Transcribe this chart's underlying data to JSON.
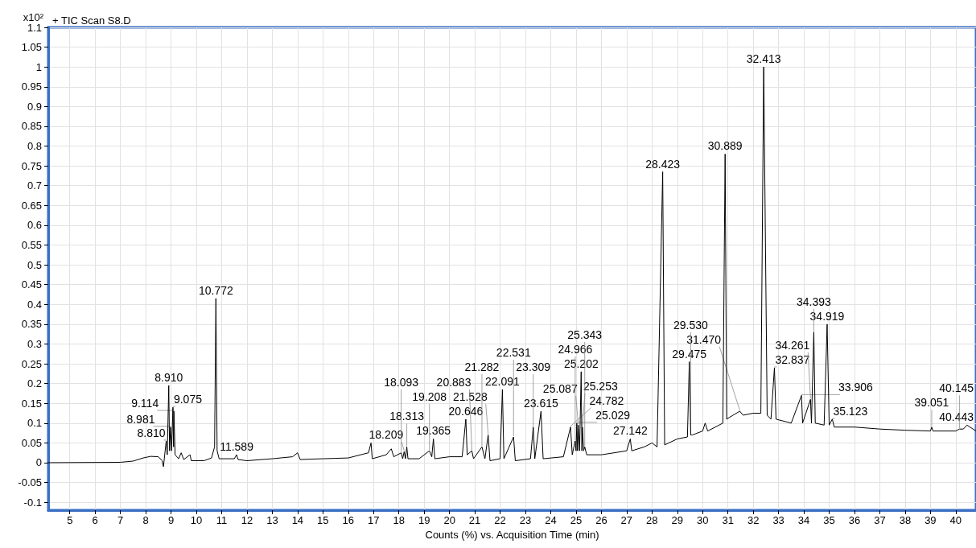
{
  "chart_data": {
    "type": "line",
    "title": "+ TIC Scan S8.D",
    "xlabel": "Counts (%) vs. Acquisition Time (min)",
    "ylabel": "x10²",
    "color": "#000000",
    "marker": "none",
    "grid": true,
    "xlim": [
      4.15,
      40.8
    ],
    "xticks": [
      5,
      6,
      7,
      8,
      9,
      10,
      11,
      12,
      13,
      14,
      15,
      16,
      17,
      18,
      19,
      20,
      21,
      22,
      23,
      24,
      25,
      26,
      27,
      28,
      29,
      30,
      31,
      32,
      33,
      34,
      35,
      36,
      37,
      38,
      39,
      40
    ],
    "ylim": [
      -0.12,
      1.1
    ],
    "yticks": [
      -0.1,
      -0.05,
      0,
      0.05,
      0.1,
      0.15,
      0.2,
      0.25,
      0.3,
      0.35,
      0.4,
      0.45,
      0.5,
      0.55,
      0.6,
      0.65,
      0.7,
      0.75,
      0.8,
      0.85,
      0.9,
      0.95,
      1,
      1.05,
      1.1
    ],
    "x": [
      4.15,
      7.0,
      7.5,
      7.9,
      8.2,
      8.5,
      8.65,
      8.7,
      8.75,
      8.81,
      8.85,
      8.91,
      8.94,
      8.981,
      9.02,
      9.075,
      9.1,
      9.114,
      9.16,
      9.3,
      9.4,
      9.5,
      9.75,
      9.8,
      10.3,
      10.6,
      10.72,
      10.772,
      10.82,
      10.9,
      11.5,
      11.589,
      11.65,
      12.0,
      13.0,
      13.8,
      14.0,
      14.1,
      15.0,
      16.0,
      16.8,
      16.9,
      16.95,
      17.5,
      17.7,
      17.8,
      18.093,
      18.15,
      18.209,
      18.26,
      18.313,
      18.36,
      18.8,
      19.208,
      19.3,
      19.365,
      19.42,
      20.0,
      20.5,
      20.646,
      20.7,
      20.883,
      20.95,
      21.282,
      21.4,
      21.528,
      21.6,
      22.0,
      22.091,
      22.15,
      22.531,
      22.6,
      23.2,
      23.309,
      23.37,
      23.615,
      23.7,
      24.5,
      24.782,
      24.85,
      24.966,
      25.0,
      25.029,
      25.06,
      25.087,
      25.14,
      25.202,
      25.23,
      25.253,
      25.3,
      25.343,
      25.42,
      26.0,
      26.5,
      27.0,
      27.142,
      27.2,
      27.7,
      28.0,
      28.2,
      28.423,
      28.5,
      29.0,
      29.4,
      29.475,
      29.53,
      29.6,
      30.0,
      30.1,
      30.2,
      30.8,
      30.889,
      30.95,
      31.2,
      31.47,
      31.6,
      32.0,
      32.3,
      32.413,
      32.55,
      32.7,
      32.837,
      32.9,
      33.5,
      33.906,
      33.95,
      34.261,
      34.3,
      34.393,
      34.45,
      34.8,
      34.919,
      35.0,
      35.123,
      35.2,
      36.0,
      37.0,
      38.0,
      39.0,
      39.051,
      39.1,
      40.0,
      40.145,
      40.3,
      40.443,
      40.8
    ],
    "values": [
      0,
      0.001,
      0.004,
      0.012,
      0.016,
      0.015,
      0.005,
      -0.01,
      0.02,
      0.055,
      0.02,
      0.195,
      0.03,
      0.09,
      0.03,
      0.14,
      0.04,
      0.13,
      0.02,
      0.01,
      0.025,
      0.008,
      0.02,
      0.005,
      0.005,
      0.012,
      0.04,
      0.415,
      0.03,
      0.01,
      0.01,
      0.02,
      0.008,
      0.005,
      0.01,
      0.015,
      0.025,
      0.008,
      0.01,
      0.012,
      0.025,
      0.05,
      0.01,
      0.02,
      0.035,
      0.015,
      0.025,
      0.01,
      0.028,
      0.01,
      0.04,
      0.01,
      0.01,
      0.03,
      0.015,
      0.06,
      0.01,
      0.015,
      0.015,
      0.11,
      0.02,
      0.03,
      0.01,
      0.04,
      0.01,
      0.07,
      0.005,
      0.01,
      0.185,
      0.01,
      0.065,
      0.005,
      0.01,
      0.09,
      0.01,
      0.13,
      0.01,
      0.015,
      0.09,
      0.02,
      0.055,
      0.03,
      0.1,
      0.03,
      0.095,
      0.03,
      0.23,
      0.03,
      0.09,
      0.03,
      0.04,
      0.02,
      0.02,
      0.025,
      0.03,
      0.06,
      0.03,
      0.04,
      0.05,
      0.04,
      0.735,
      0.045,
      0.06,
      0.065,
      0.255,
      0.07,
      0.07,
      0.08,
      0.1,
      0.08,
      0.1,
      0.78,
      0.11,
      0.12,
      0.13,
      0.12,
      0.125,
      0.125,
      1.0,
      0.12,
      0.11,
      0.24,
      0.11,
      0.1,
      0.17,
      0.1,
      0.16,
      0.1,
      0.33,
      0.1,
      0.095,
      0.35,
      0.095,
      0.11,
      0.09,
      0.09,
      0.085,
      0.082,
      0.08,
      0.09,
      0.08,
      0.08,
      0.085,
      0.085,
      0.095,
      0.08
    ],
    "annotations": [
      {
        "text": "8.810",
        "x": 8.81,
        "y": 0.055
      },
      {
        "text": "8.910",
        "x": 8.91,
        "y": 0.195
      },
      {
        "text": "8.981",
        "x": 8.981,
        "y": 0.09
      },
      {
        "text": "9.075",
        "x": 9.075,
        "y": 0.14
      },
      {
        "text": "9.114",
        "x": 9.114,
        "y": 0.13
      },
      {
        "text": "10.772",
        "x": 10.772,
        "y": 0.415
      },
      {
        "text": "11.589",
        "x": 11.589,
        "y": 0.02
      },
      {
        "text": "18.093",
        "x": 18.093,
        "y": 0.025
      },
      {
        "text": "18.209",
        "x": 18.209,
        "y": 0.028
      },
      {
        "text": "18.313",
        "x": 18.313,
        "y": 0.04
      },
      {
        "text": "19.208",
        "x": 19.208,
        "y": 0.03
      },
      {
        "text": "19.365",
        "x": 19.365,
        "y": 0.06
      },
      {
        "text": "20.646",
        "x": 20.646,
        "y": 0.11
      },
      {
        "text": "20.883",
        "x": 20.883,
        "y": 0.03
      },
      {
        "text": "21.282",
        "x": 21.282,
        "y": 0.04
      },
      {
        "text": "21.528",
        "x": 21.528,
        "y": 0.07
      },
      {
        "text": "22.091",
        "x": 22.091,
        "y": 0.185
      },
      {
        "text": "22.531",
        "x": 22.531,
        "y": 0.065
      },
      {
        "text": "23.309",
        "x": 23.309,
        "y": 0.09
      },
      {
        "text": "23.615",
        "x": 23.615,
        "y": 0.13
      },
      {
        "text": "24.782",
        "x": 24.782,
        "y": 0.09
      },
      {
        "text": "24.966",
        "x": 24.966,
        "y": 0.055
      },
      {
        "text": "25.029",
        "x": 25.029,
        "y": 0.1
      },
      {
        "text": "25.087",
        "x": 25.087,
        "y": 0.095
      },
      {
        "text": "25.202",
        "x": 25.202,
        "y": 0.23
      },
      {
        "text": "25.253",
        "x": 25.253,
        "y": 0.09
      },
      {
        "text": "25.343",
        "x": 25.343,
        "y": 0.04
      },
      {
        "text": "27.142",
        "x": 27.142,
        "y": 0.06
      },
      {
        "text": "28.423",
        "x": 28.423,
        "y": 0.735
      },
      {
        "text": "29.475",
        "x": 29.475,
        "y": 0.255
      },
      {
        "text": "29.530",
        "x": 29.53,
        "y": 0.07
      },
      {
        "text": "30.889",
        "x": 30.889,
        "y": 0.78
      },
      {
        "text": "31.470",
        "x": 31.47,
        "y": 0.13
      },
      {
        "text": "32.413",
        "x": 32.413,
        "y": 1.0
      },
      {
        "text": "32.837",
        "x": 32.837,
        "y": 0.24
      },
      {
        "text": "33.906",
        "x": 33.906,
        "y": 0.17
      },
      {
        "text": "34.261",
        "x": 34.261,
        "y": 0.16
      },
      {
        "text": "34.393",
        "x": 34.393,
        "y": 0.33
      },
      {
        "text": "34.919",
        "x": 34.919,
        "y": 0.35
      },
      {
        "text": "35.123",
        "x": 35.123,
        "y": 0.11
      },
      {
        "text": "39.051",
        "x": 39.051,
        "y": 0.09
      },
      {
        "text": "40.145",
        "x": 40.145,
        "y": 0.085
      },
      {
        "text": "40.443",
        "x": 40.443,
        "y": 0.095
      }
    ]
  }
}
